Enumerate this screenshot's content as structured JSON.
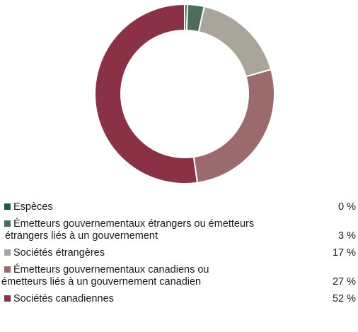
{
  "chart_data": {
    "type": "pie",
    "donut": true,
    "categories": [
      "Espèces",
      "Émetteurs gouvernementaux étrangers ou émetteurs étrangers liés à un gouvernement",
      "Sociétés étrangères",
      "Émetteurs gouvernementaux canadiens ou émetteurs liés à un gouvernement canadien",
      "Sociétés canadiennes"
    ],
    "values": [
      0.5,
      3,
      17,
      27,
      52
    ],
    "colors": [
      "#1d5c3e",
      "#4d6d58",
      "#aaa59a",
      "#9a6a6c",
      "#8b3146"
    ],
    "legend_placement": "bottom"
  },
  "legend": {
    "items": [
      {
        "lines": [
          "Espèces"
        ],
        "value": "0 %"
      },
      {
        "lines": [
          "Émetteurs gouvernementaux étrangers ou émetteurs",
          "étrangers liés à un gouvernement"
        ],
        "value": "3 %"
      },
      {
        "lines": [
          "Sociétés étrangères"
        ],
        "value": "17 %"
      },
      {
        "lines": [
          "Émetteurs gouvernementaux canadiens ou",
          "émetteurs liés à un gouvernement canadien"
        ],
        "value": "27 %"
      },
      {
        "lines": [
          "Sociétés canadiennes"
        ],
        "value": "52 %"
      }
    ]
  }
}
